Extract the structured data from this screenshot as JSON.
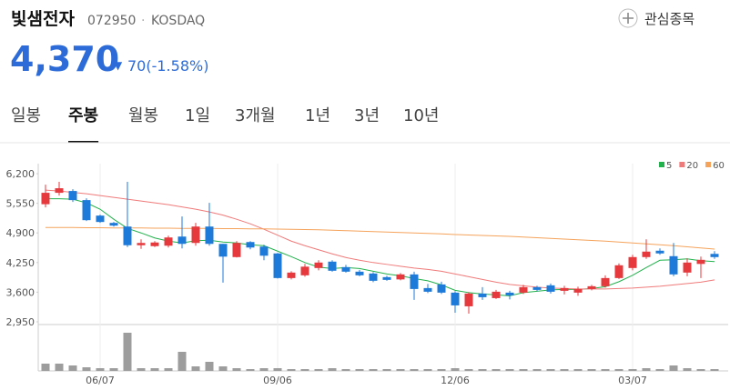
{
  "header": {
    "name": "빛샘전자",
    "code": "072950",
    "separator": "·",
    "market": "KOSDAQ",
    "watch_button": "관심종목"
  },
  "price": {
    "current": "4,370",
    "change_arrow": "▼",
    "change": "70(-1.58%)"
  },
  "tabs": [
    "일봉",
    "주봉",
    "월봉",
    "1일",
    "3개월",
    "1년",
    "3년",
    "10년"
  ],
  "active_tab": 1,
  "chart_data": {
    "type": "candlestick",
    "categories": [
      null,
      null,
      null,
      null,
      "06/07",
      null,
      null,
      null,
      null,
      null,
      null,
      null,
      null,
      null,
      null,
      null,
      null,
      "09/06",
      null,
      null,
      null,
      null,
      null,
      null,
      null,
      null,
      null,
      null,
      null,
      null,
      "12/06",
      null,
      null,
      null,
      null,
      null,
      null,
      null,
      null,
      null,
      null,
      null,
      null,
      "03/07",
      null,
      null,
      null,
      null,
      null,
      null
    ],
    "open": [
      5530,
      5780,
      5820,
      5620,
      5280,
      5120,
      5040,
      4630,
      4610,
      4620,
      4820,
      4680,
      5040,
      4660,
      4370,
      4700,
      4600,
      4450,
      3910,
      3970,
      4130,
      4270,
      4150,
      4050,
      4010,
      3930,
      3880,
      3990,
      3690,
      3770,
      3590,
      3290,
      3570,
      3470,
      3590,
      3590,
      3710,
      3750,
      3630,
      3590,
      3670,
      3730,
      3910,
      4130,
      4370,
      4510,
      4390,
      4030,
      4220,
      4440
    ],
    "high": [
      5960,
      6020,
      5860,
      5660,
      5300,
      5140,
      6020,
      4760,
      4720,
      4840,
      5260,
      5120,
      5560,
      4660,
      4720,
      4720,
      4640,
      4460,
      4060,
      4220,
      4300,
      4300,
      4200,
      4090,
      4040,
      3960,
      4020,
      4050,
      3780,
      3830,
      3620,
      3600,
      3710,
      3650,
      3630,
      3760,
      3740,
      3790,
      3740,
      3720,
      3760,
      3970,
      4230,
      4420,
      4760,
      4560,
      4680,
      4340,
      4380,
      4500
    ],
    "low": [
      5460,
      5720,
      5580,
      5160,
      5120,
      5040,
      4590,
      4550,
      4590,
      4580,
      4560,
      4620,
      4620,
      3810,
      4360,
      4540,
      4300,
      3900,
      3880,
      3940,
      4080,
      4050,
      4030,
      3950,
      3820,
      3850,
      3860,
      3430,
      3580,
      3560,
      3150,
      3130,
      3430,
      3450,
      3440,
      3560,
      3620,
      3570,
      3550,
      3520,
      3640,
      3700,
      3890,
      4080,
      4330,
      4420,
      3950,
      3950,
      3910,
      4330
    ],
    "close": [
      5780,
      5880,
      5620,
      5180,
      5140,
      5060,
      4630,
      4680,
      4690,
      4800,
      4660,
      5040,
      4660,
      4380,
      4680,
      4580,
      4400,
      3910,
      4030,
      4160,
      4250,
      4070,
      4050,
      3970,
      3850,
      3870,
      3990,
      3670,
      3610,
      3590,
      3310,
      3570,
      3490,
      3610,
      3530,
      3710,
      3650,
      3610,
      3690,
      3670,
      3730,
      3910,
      4190,
      4370,
      4490,
      4450,
      3990,
      4250,
      4310,
      4370
    ],
    "up_color": "#e5393d",
    "down_color": "#1e7ad8",
    "ylim": [
      2890,
      6420
    ],
    "yticks": [
      {
        "value": 6200,
        "label": "6,200"
      },
      {
        "value": 5550,
        "label": "5,550"
      },
      {
        "value": 4900,
        "label": "4,900"
      },
      {
        "value": 4250,
        "label": "4,250"
      },
      {
        "value": 3600,
        "label": "3,600"
      },
      {
        "value": 2950,
        "label": "2,950"
      }
    ],
    "series": [
      {
        "name": "5",
        "color": "#22b14c",
        "values": [
          5650,
          5650,
          5640,
          5560,
          5420,
          5200,
          5000,
          4900,
          4790,
          4720,
          4680,
          4730,
          4740,
          4700,
          4680,
          4640,
          4620,
          4500,
          4380,
          4250,
          4150,
          4120,
          4140,
          4120,
          4060,
          4000,
          3960,
          3900,
          3850,
          3760,
          3640,
          3590,
          3560,
          3540,
          3520,
          3590,
          3620,
          3650,
          3660,
          3660,
          3680,
          3720,
          3830,
          3970,
          4140,
          4300,
          4310,
          4330,
          4290,
          4270
        ]
      },
      {
        "name": "20",
        "color": "#f07a7a",
        "values": [
          5840,
          5820,
          5790,
          5760,
          5720,
          5680,
          5640,
          5600,
          5560,
          5520,
          5470,
          5420,
          5360,
          5290,
          5200,
          5100,
          4980,
          4850,
          4720,
          4620,
          4530,
          4440,
          4360,
          4300,
          4250,
          4210,
          4170,
          4130,
          4100,
          4060,
          4000,
          3940,
          3880,
          3820,
          3770,
          3740,
          3710,
          3690,
          3680,
          3670,
          3670,
          3670,
          3680,
          3690,
          3710,
          3730,
          3760,
          3790,
          3820,
          3870
        ]
      },
      {
        "name": "60",
        "color": "#f5a35b",
        "values": [
          5020,
          5020,
          5020,
          5015,
          5015,
          5010,
          5010,
          5010,
          5005,
          5005,
          5000,
          5000,
          5000,
          4995,
          4995,
          4990,
          4990,
          4985,
          4980,
          4975,
          4970,
          4960,
          4950,
          4940,
          4930,
          4920,
          4910,
          4900,
          4890,
          4880,
          4865,
          4855,
          4845,
          4835,
          4825,
          4810,
          4795,
          4780,
          4765,
          4750,
          4735,
          4720,
          4700,
          4680,
          4660,
          4640,
          4620,
          4595,
          4570,
          4545
        ]
      }
    ],
    "volume": {
      "color": "#9d9d9d",
      "ylim": [
        0,
        50
      ],
      "values": [
        8,
        8,
        6,
        4,
        3,
        3,
        42,
        3,
        3,
        3,
        21,
        5,
        10,
        5,
        3,
        2,
        3,
        3,
        2,
        2,
        2,
        3,
        2,
        2,
        2,
        2,
        2,
        2,
        2,
        2,
        3,
        2,
        2,
        2,
        2,
        2,
        2,
        2,
        2,
        2,
        2,
        2,
        2,
        2,
        3,
        2,
        6,
        3,
        2,
        2
      ]
    }
  }
}
